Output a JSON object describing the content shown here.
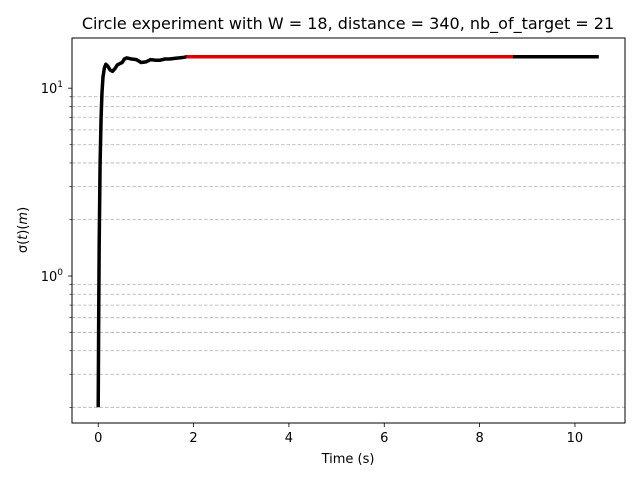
{
  "chart_data": {
    "type": "line",
    "title": "Circle experiment with W = 18, distance = 340, nb_of_target = 21",
    "xlabel": "Time (s)",
    "ylabel_parts": {
      "main": "σ(",
      "var": "t",
      "mid": ")(",
      "unit": "m",
      "end": ")"
    },
    "xlim": [
      -0.55,
      11.05
    ],
    "ylim": [
      0.165,
      18.5
    ],
    "yscale": "log",
    "grid": "y-minor-dashed",
    "x_ticks": [
      {
        "value": 0,
        "label": "0"
      },
      {
        "value": 2,
        "label": "2"
      },
      {
        "value": 4,
        "label": "4"
      },
      {
        "value": 6,
        "label": "6"
      },
      {
        "value": 8,
        "label": "8"
      },
      {
        "value": 10,
        "label": "10"
      }
    ],
    "y_major_ticks": [
      {
        "value": 1,
        "base": "10",
        "exp": "0"
      },
      {
        "value": 10,
        "base": "10",
        "exp": "1"
      }
    ],
    "y_minor_ticks": [
      0.2,
      0.3,
      0.4,
      0.5,
      0.6,
      0.7,
      0.8,
      0.9,
      2,
      3,
      4,
      5,
      6,
      7,
      8,
      9
    ],
    "series": [
      {
        "color": "#000000",
        "x": [
          0,
          0.01,
          0.02,
          0.04,
          0.06,
          0.08,
          0.1,
          0.13,
          0.16,
          0.2,
          0.25,
          0.3,
          0.35,
          0.4,
          0.45,
          0.5,
          0.55,
          0.6,
          0.7,
          0.8,
          0.9,
          1.0,
          1.1,
          1.2,
          1.3,
          1.4,
          1.5,
          1.6,
          1.7,
          1.8,
          1.85,
          3,
          5,
          7,
          8.7,
          9,
          10,
          10.5
        ],
        "y": [
          0.2,
          0.6,
          1.5,
          4,
          7,
          9.5,
          11.5,
          12.8,
          13.4,
          13.1,
          12.5,
          12.3,
          12.7,
          13.3,
          13.5,
          13.7,
          14.3,
          14.5,
          14.3,
          14.2,
          13.7,
          13.8,
          14.2,
          14.1,
          14.1,
          14.3,
          14.3,
          14.4,
          14.5,
          14.6,
          14.7,
          14.7,
          14.7,
          14.7,
          14.7,
          14.7,
          14.7,
          14.7
        ]
      },
      {
        "color": "#dd0000",
        "x": [
          1.85,
          8.7
        ],
        "y": [
          14.7,
          14.7
        ]
      }
    ]
  }
}
